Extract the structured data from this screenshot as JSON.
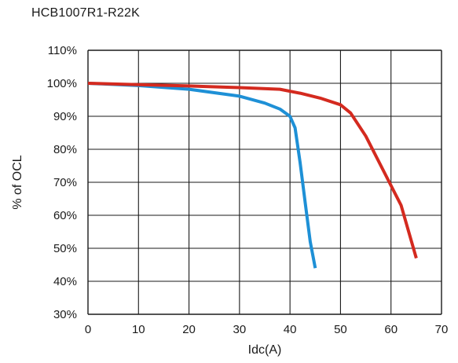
{
  "chart_data": {
    "type": "line",
    "title": "HCB1007R1-R22K",
    "xlabel": "Idc(A)",
    "ylabel": "% of OCL",
    "xlim": [
      0,
      70
    ],
    "ylim": [
      30,
      110
    ],
    "x_ticks": [
      "0",
      "10",
      "20",
      "30",
      "40",
      "50",
      "60",
      "70"
    ],
    "y_ticks": [
      "30%",
      "40%",
      "50%",
      "60%",
      "70%",
      "80%",
      "90%",
      "100%",
      "110%"
    ],
    "grid": true,
    "series": [
      {
        "color": "#1e90d6",
        "points": [
          [
            0,
            100
          ],
          [
            10,
            99.3
          ],
          [
            20,
            98.2
          ],
          [
            30,
            96.1
          ],
          [
            35,
            94.0
          ],
          [
            38,
            92.2
          ],
          [
            40,
            90.0
          ],
          [
            41,
            86.5
          ],
          [
            42,
            76.0
          ],
          [
            43,
            64.0
          ],
          [
            44,
            52.0
          ],
          [
            45,
            44.0
          ]
        ]
      },
      {
        "color": "#d42a1f",
        "points": [
          [
            0,
            100
          ],
          [
            10,
            99.6
          ],
          [
            20,
            99.2
          ],
          [
            30,
            98.7
          ],
          [
            38,
            98.2
          ],
          [
            42,
            97.0
          ],
          [
            46,
            95.5
          ],
          [
            50,
            93.5
          ],
          [
            52,
            91.0
          ],
          [
            55,
            84.0
          ],
          [
            58,
            75.0
          ],
          [
            62,
            63.0
          ],
          [
            65,
            47.0
          ]
        ]
      }
    ]
  }
}
